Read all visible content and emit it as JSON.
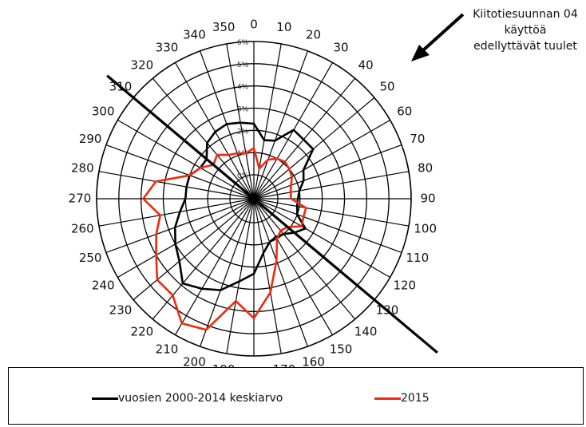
{
  "chart_data": {
    "type": "radar",
    "angle_labels": [
      "0",
      "10",
      "20",
      "30",
      "40",
      "50",
      "60",
      "70",
      "80",
      "90",
      "100",
      "110",
      "120",
      "130",
      "140",
      "150",
      "160",
      "170",
      "180",
      "190",
      "200",
      "210",
      "220",
      "230",
      "240",
      "250",
      "260",
      "270",
      "280",
      "290",
      "300",
      "310",
      "320",
      "330",
      "340",
      "350"
    ],
    "radial_tick_labels": [
      "0%",
      "1%",
      "2%",
      "3%",
      "4%",
      "5%",
      "6%"
    ],
    "rmax": 6,
    "series": [
      {
        "name": "vuosien 2000-2014 keskiarvo",
        "color": "#000000",
        "values": [
          2.3,
          1.6,
          1.7,
          2.5,
          2.4,
          2.4,
          1.5,
          1.3,
          1.0,
          0.9,
          0.9,
          1.0,
          1.6,
          1.3,
          1.0,
          0.9,
          1.0,
          1.4,
          2.3,
          2.7,
          3.3,
          3.6,
          3.9,
          3.3,
          3.0,
          2.7,
          2.3,
          2.0,
          2.0,
          2.0,
          1.7,
          1.7,
          2.2,
          2.4,
          2.5,
          2.4
        ]
      },
      {
        "name": "2015",
        "color": "#ee2a0e",
        "values": [
          1.2,
          0.3,
          0.8,
          1.0,
          1.1,
          1.0,
          0.9,
          0.7,
          0.6,
          0.6,
          1.3,
          1.3,
          1.4,
          0.9,
          0.8,
          1.0,
          1.9,
          3.2,
          4.3,
          3.6,
          5.2,
          5.4,
          4.6,
          4.6,
          4.0,
          3.6,
          3.2,
          3.9,
          3.4,
          2.0,
          1.7,
          1.3,
          1.5,
          1.2,
          1.1,
          1.0
        ]
      }
    ],
    "runway_line_bearing": [
      310,
      130
    ],
    "annotation": "Kiitotiesuunnan 04 käyttöä edellyttävät tuulet"
  }
}
